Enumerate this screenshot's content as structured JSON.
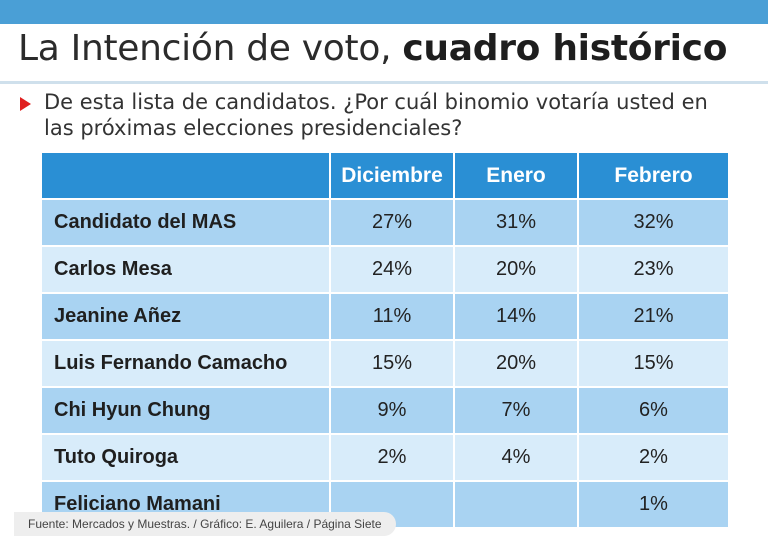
{
  "title": {
    "regular": "La Intención de voto,",
    "bold": "cuadro histórico"
  },
  "question": "De esta lista de candidatos. ¿Por cuál binomio votaría usted en las próximas elecciones presidenciales?",
  "source": "Fuente: Mercados y Muestras. / Gráfico: E. Aguilera / Página Siete",
  "colors": {
    "header": "#2a8fd4",
    "row_dark": "#a9d3f2",
    "row_light": "#d8ecfa",
    "marker": "#e02020"
  },
  "chart_data": {
    "type": "table",
    "columns": [
      "Diciembre",
      "Enero",
      "Febrero"
    ],
    "rows": [
      {
        "name": "Candidato del MAS",
        "values": [
          "27%",
          "31%",
          "32%"
        ]
      },
      {
        "name": "Carlos Mesa",
        "values": [
          "24%",
          "20%",
          "23%"
        ]
      },
      {
        "name": "Jeanine Añez",
        "values": [
          "11%",
          "14%",
          "21%"
        ]
      },
      {
        "name": "Luis Fernando Camacho",
        "values": [
          "15%",
          "20%",
          "15%"
        ]
      },
      {
        "name": "Chi Hyun Chung",
        "values": [
          "9%",
          "7%",
          "6%"
        ]
      },
      {
        "name": "Tuto Quiroga",
        "values": [
          "2%",
          "4%",
          "2%"
        ]
      },
      {
        "name": "Feliciano Mamani",
        "values": [
          "",
          "",
          "1%"
        ]
      }
    ]
  }
}
